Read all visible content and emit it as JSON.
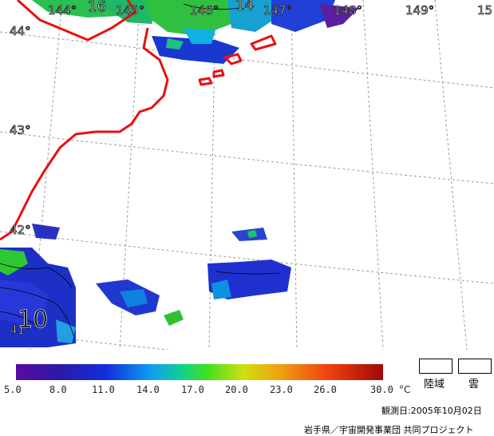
{
  "map": {
    "longitude_labels": [
      "144°",
      "145°",
      "146°",
      "147°",
      "148°",
      "149°",
      "15"
    ],
    "latitude_labels": [
      "44°",
      "43°",
      "42°",
      "41°"
    ],
    "contour_labels": [
      "16",
      "14",
      "10"
    ]
  },
  "colorbar": {
    "ticks": [
      "5.0",
      "8.0",
      "11.0",
      "14.0",
      "17.0",
      "20.0",
      "23.0",
      "26.0",
      "30.0"
    ],
    "unit": "°C"
  },
  "legend": {
    "land_label": "陸域",
    "cloud_label": "雲"
  },
  "footer": {
    "date_text": "観測日:2005年10月02日",
    "credit_text": "岩手県／宇宙開発事業団 共同プロジェクト"
  },
  "colors": {
    "coastline": "#e81010",
    "grid": "#9a9a9a"
  }
}
